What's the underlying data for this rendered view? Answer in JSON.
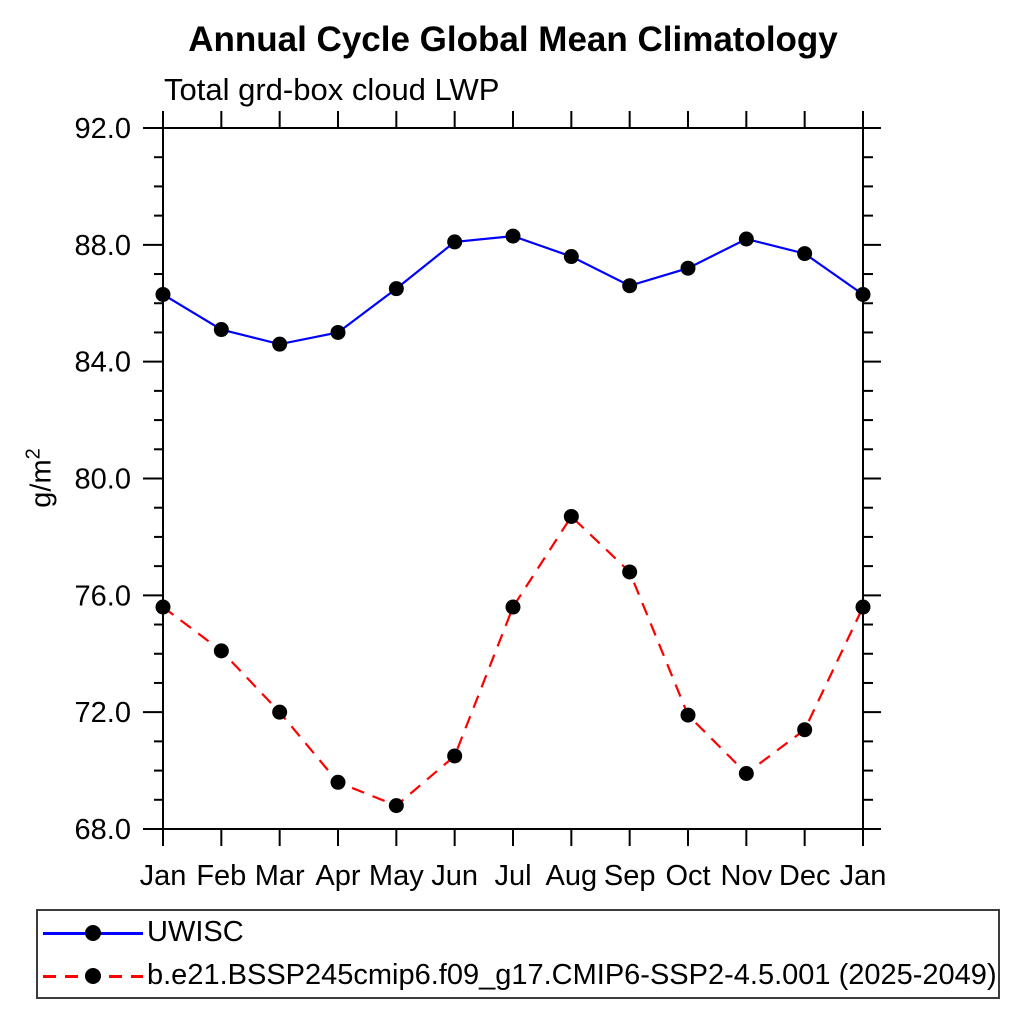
{
  "chart_data": {
    "type": "line",
    "title": "Annual Cycle Global Mean Climatology",
    "subtitle": "Total grd-box cloud LWP",
    "ylabel": "g/m²",
    "xlabel": "",
    "categories": [
      "Jan",
      "Feb",
      "Mar",
      "Apr",
      "May",
      "Jun",
      "Jul",
      "Aug",
      "Sep",
      "Oct",
      "Nov",
      "Dec",
      "Jan"
    ],
    "ylim": [
      68.0,
      92.0
    ],
    "y_major_ticks": [
      68.0,
      72.0,
      76.0,
      80.0,
      84.0,
      88.0,
      92.0
    ],
    "y_tick_labels": [
      "68.0",
      "72.0",
      "76.0",
      "80.0",
      "84.0",
      "88.0",
      "92.0"
    ],
    "y_minor_step": 1.0,
    "grid": false,
    "legend_position": "bottom-left-box",
    "series": [
      {
        "name": "UWISC",
        "color": "#0000ff",
        "line_style": "solid",
        "marker": "filled-circle",
        "marker_color": "#000000",
        "values": [
          86.3,
          85.1,
          84.6,
          85.0,
          86.5,
          88.1,
          88.3,
          87.6,
          86.6,
          87.2,
          88.2,
          87.7,
          86.3
        ]
      },
      {
        "name": "b.e21.BSSP245cmip6.f09_g17.CMIP6-SSP2-4.5.001 (2025-2049)",
        "color": "#ff0000",
        "line_style": "dashed",
        "marker": "filled-circle",
        "marker_color": "#000000",
        "values": [
          75.6,
          74.1,
          72.0,
          69.6,
          68.8,
          70.5,
          75.6,
          78.7,
          76.8,
          71.9,
          69.9,
          71.4,
          75.6
        ]
      }
    ]
  },
  "axes": {
    "ylabel_base": "g/m",
    "ylabel_exponent": "2"
  },
  "legend": {
    "items": [
      {
        "label": "UWISC",
        "color": "#0000ff",
        "style": "solid"
      },
      {
        "label": "b.e21.BSSP245cmip6.f09_g17.CMIP6-SSP2-4.5.001 (2025-2049)",
        "color": "#ff0000",
        "style": "dashed"
      }
    ]
  }
}
